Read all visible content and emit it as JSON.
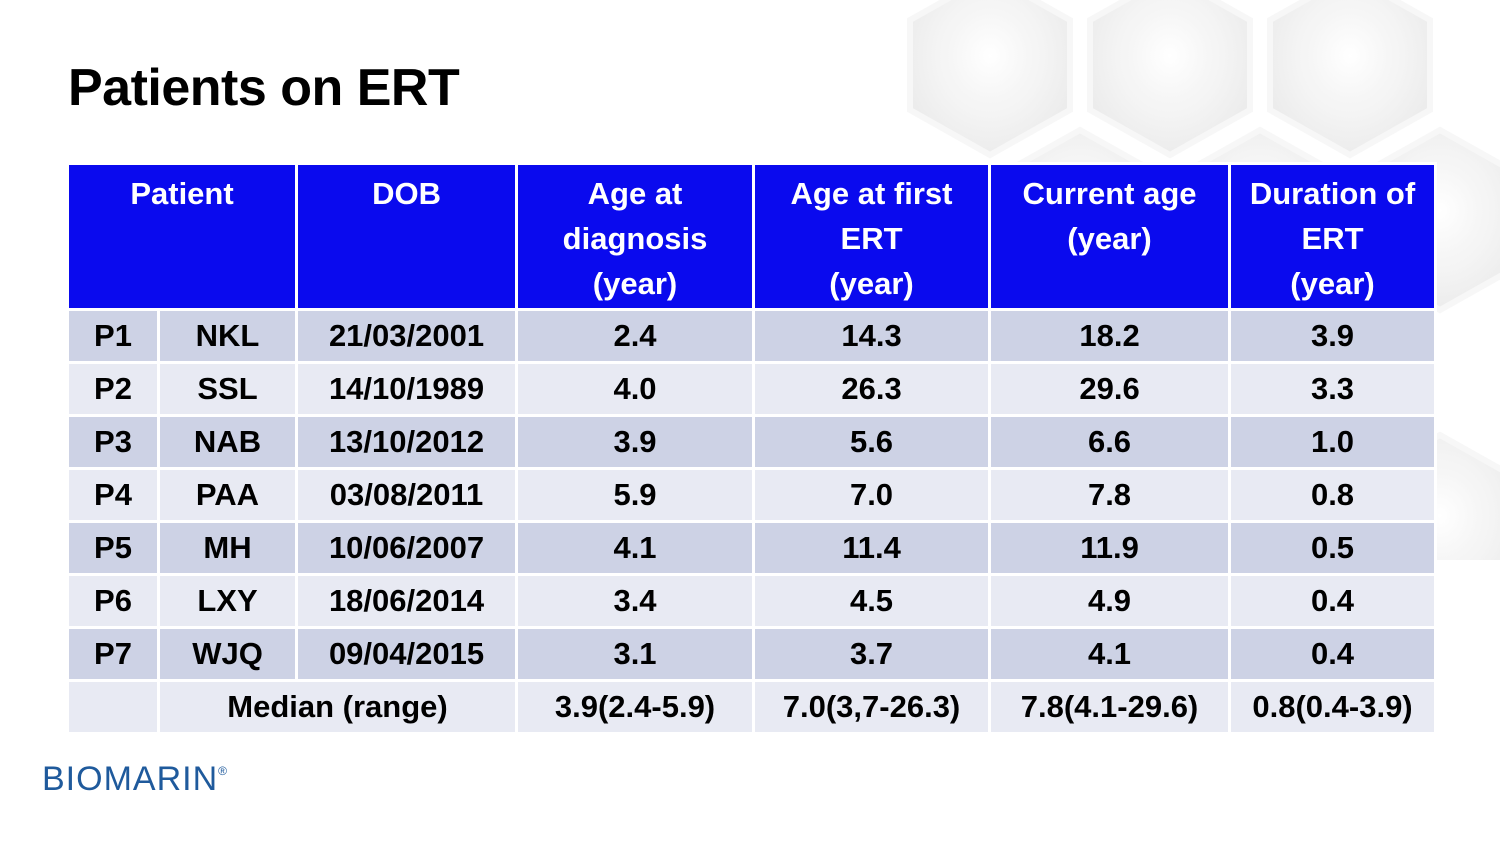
{
  "slide": {
    "title": "Patients on ERT"
  },
  "table": {
    "headers": {
      "patient": "Patient",
      "dob": "DOB",
      "age_diagnosis": "Age at\ndiagnosis\n(year)",
      "age_first_ert": "Age at first\nERT\n(year)",
      "current_age": "Current age\n(year)",
      "duration": "Duration of\nERT\n(year)"
    },
    "rows": [
      [
        "P1",
        "NKL",
        "21/03/2001",
        "2.4",
        "14.3",
        "18.2",
        "3.9"
      ],
      [
        "P2",
        "SSL",
        "14/10/1989",
        "4.0",
        "26.3",
        "29.6",
        "3.3"
      ],
      [
        "P3",
        "NAB",
        "13/10/2012",
        "3.9",
        "5.6",
        "6.6",
        "1.0"
      ],
      [
        "P4",
        "PAA",
        "03/08/2011",
        "5.9",
        "7.0",
        "7.8",
        "0.8"
      ],
      [
        "P5",
        "MH",
        "10/06/2007",
        "4.1",
        "11.4",
        "11.9",
        "0.5"
      ],
      [
        "P6",
        "LXY",
        "18/06/2014",
        "3.4",
        "4.5",
        "4.9",
        "0.4"
      ],
      [
        "P7",
        "WJQ",
        "09/04/2015",
        "3.1",
        "3.7",
        "4.1",
        "0.4"
      ]
    ],
    "summary": {
      "label": "Median (range)",
      "age_diagnosis": "3.9(2.4-5.9)",
      "age_first_ert": "7.0(3,7-26.3)",
      "current_age": "7.8(4.1-29.6)",
      "duration": "0.8(0.4-3.9)"
    },
    "colors": {
      "header_bg": "#0a0aee",
      "row_odd": "#cdd2e5",
      "row_even": "#e8eaf3"
    }
  },
  "logo": {
    "text": "BIOMARIN",
    "tm": "®"
  }
}
